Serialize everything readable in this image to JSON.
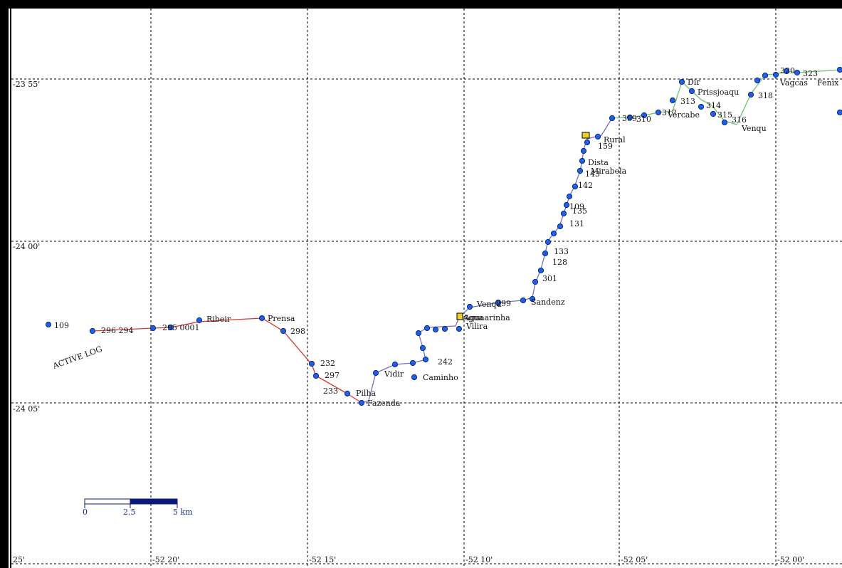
{
  "grid": {
    "lat_labels": [
      "-23 55'",
      "-24 00'",
      "-24 05'"
    ],
    "lon_labels": [
      "25'",
      "-52 20'",
      "-52 15'",
      "-52 10'",
      "-52 05'",
      "-52 00'"
    ]
  },
  "scale_bar": {
    "ticks": [
      "0",
      "2,5",
      "5 km"
    ]
  },
  "track_label": "ACTIVE LOG",
  "colors": {
    "track_west": "#e03030",
    "track_east": "#7070d0",
    "track_ne": "#70c070",
    "waypoint": "#2060e0",
    "waypoint_outline": "#0a2a8a",
    "frame": "#000000",
    "grid": "#000000",
    "scale_fill": "#0a1a7a"
  },
  "waypoints": [
    {
      "label": "109"
    },
    {
      "label": "296 294"
    },
    {
      "label": "295 0001"
    },
    {
      "label": "Ribeir"
    },
    {
      "label": "Prensa"
    },
    {
      "label": "298"
    },
    {
      "label": "232"
    },
    {
      "label": "297"
    },
    {
      "label": "233"
    },
    {
      "label": "Pilha"
    },
    {
      "label": "Fazenda"
    },
    {
      "label": "Vidir"
    },
    {
      "label": "Caminho"
    },
    {
      "label": "242"
    },
    {
      "label": "Agua"
    },
    {
      "label": "Aguaarinha"
    },
    {
      "label": "Vilira"
    },
    {
      "label": "Venqu"
    },
    {
      "label": "299"
    },
    {
      "label": "Sandenz"
    },
    {
      "label": "301"
    },
    {
      "label": "128"
    },
    {
      "label": "133"
    },
    {
      "label": "131"
    },
    {
      "label": "135"
    },
    {
      "label": "109"
    },
    {
      "label": "142"
    },
    {
      "label": "143"
    },
    {
      "label": "Mirabela"
    },
    {
      "label": "Dista"
    },
    {
      "label": "159"
    },
    {
      "label": "Rural"
    },
    {
      "label": "309"
    },
    {
      "label": "310"
    },
    {
      "label": "312"
    },
    {
      "label": "Vercabe"
    },
    {
      "label": "Dir"
    },
    {
      "label": "Prissjoaqu"
    },
    {
      "label": "313"
    },
    {
      "label": "314"
    },
    {
      "label": "315"
    },
    {
      "label": "316"
    },
    {
      "label": "Venqu"
    },
    {
      "label": "318"
    },
    {
      "label": "320"
    },
    {
      "label": "323"
    },
    {
      "label": "Vagcas"
    },
    {
      "label": "Fenix"
    }
  ]
}
